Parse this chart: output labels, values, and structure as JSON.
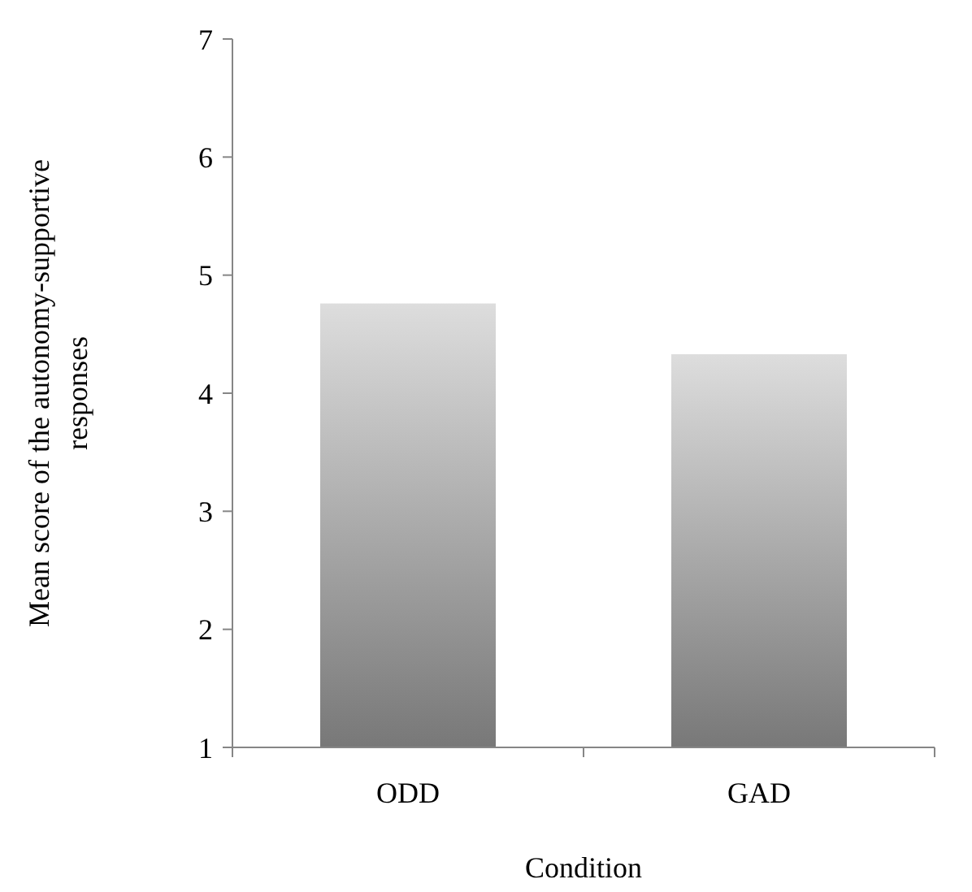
{
  "chart_data": {
    "type": "bar",
    "xlabel": "Condition",
    "ylabel": "Mean score of the autonomy-supportive responses",
    "categories": [
      "ODD",
      "GAD"
    ],
    "values": [
      4.76,
      4.33
    ],
    "color": "#a6a6a6",
    "ylim": [
      1,
      7
    ],
    "yticks": [
      1,
      2,
      3,
      4,
      5,
      6,
      7
    ]
  }
}
